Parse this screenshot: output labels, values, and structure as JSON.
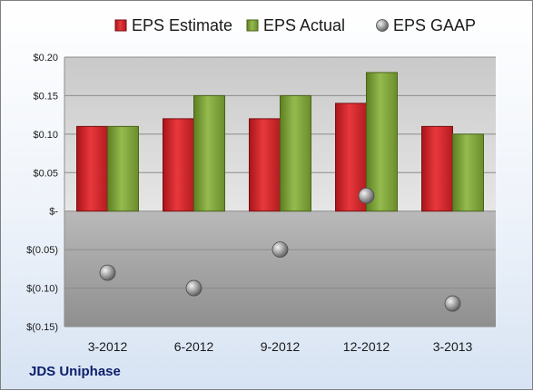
{
  "footer": {
    "company": "JDS Uniphase"
  },
  "chart_data": {
    "type": "bar",
    "categories": [
      "3-2012",
      "6-2012",
      "9-2012",
      "12-2012",
      "3-2013"
    ],
    "series": [
      {
        "name": "EPS Estimate",
        "type": "bar",
        "color": "#d9252a",
        "values": [
          0.11,
          0.12,
          0.12,
          0.14,
          0.11
        ]
      },
      {
        "name": "EPS Actual",
        "type": "bar",
        "color": "#7fa23b",
        "values": [
          0.11,
          0.15,
          0.15,
          0.18,
          0.1
        ]
      },
      {
        "name": "EPS GAAP",
        "type": "scatter",
        "color": "#a6a6a6",
        "values": [
          -0.08,
          -0.1,
          -0.05,
          0.02,
          -0.12
        ]
      }
    ],
    "ylim": [
      -0.15,
      0.2
    ],
    "yticks": [
      0.2,
      0.15,
      0.1,
      0.05,
      0,
      -0.05,
      -0.1,
      -0.15
    ],
    "ytick_labels": [
      "$0.20",
      "$0.15",
      "$0.10",
      "$0.05",
      "$-",
      "$(0.05)",
      "$(0.10)",
      "$(0.15)"
    ],
    "legend": "top",
    "grid": true
  }
}
